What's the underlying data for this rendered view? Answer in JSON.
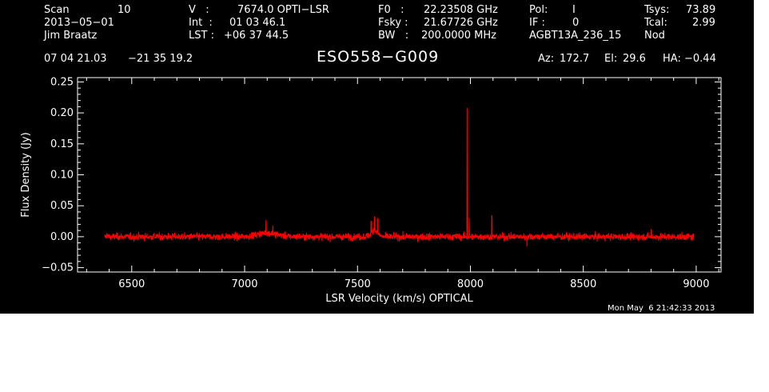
{
  "header": {
    "row1": {
      "scan_label": "Scan",
      "scan_value": "10",
      "v_label": "V   :",
      "v_value": "7674.0 OPTI−LSR",
      "f0_label": "F0   :",
      "f0_value": "22.23508 GHz",
      "pol_label": "Pol:",
      "pol_value": "I",
      "tsys_label": "Tsys:",
      "tsys_value": "73.89"
    },
    "row2": {
      "date": "2013−05−01",
      "int_label": "Int  :",
      "int_value": "01 03 46.1",
      "fsky_label": "Fsky :",
      "fsky_value": "21.67726 GHz",
      "if_label": "IF :",
      "if_value": "0",
      "tcal_label": "Tcal:",
      "tcal_value": "2.99"
    },
    "row3": {
      "observer": "Jim Braatz",
      "lst_label": "LST :",
      "lst_value": "+06 37 44.5",
      "bw_label": "BW   :",
      "bw_value": "200.0000 MHz",
      "project": "AGBT13A_236_15",
      "mode": "Nod"
    },
    "row4": {
      "ra": "07 04 21.03",
      "dec": "−21 35 19.2",
      "source": "ESO558−G009",
      "az_label": "Az:",
      "az_value": "172.7",
      "el_label": "El:",
      "el_value": "29.6",
      "ha_label": "HA:",
      "ha_value": "−0.44"
    }
  },
  "timestamp": "Mon May  6 21:42:33 2013",
  "colors": {
    "background": "#000000",
    "foreground": "#ffffff",
    "trace": "#ff0000"
  },
  "chart_data": {
    "type": "line",
    "xlabel": "LSR Velocity (km/s) OPTICAL",
    "ylabel": "Flux Density (Jy)",
    "xlim": [
      6260,
      9110
    ],
    "ylim": [
      -0.057,
      0.257
    ],
    "x_ticks": [
      6500,
      7000,
      7500,
      8000,
      8500,
      9000
    ],
    "x_tick_labels": [
      "6500",
      "7000",
      "7500",
      "8000",
      "8500",
      "9000"
    ],
    "y_ticks": [
      -0.05,
      0.0,
      0.05,
      0.1,
      0.15,
      0.2,
      0.25
    ],
    "y_tick_labels": [
      "−0.05",
      "0.00",
      "0.05",
      "0.10",
      "0.15",
      "0.20",
      "0.25"
    ],
    "grid": false,
    "series": [
      {
        "x_range": [
          6380,
          8990
        ],
        "noise_rms": 0.004,
        "features": [
          {
            "x": 6390,
            "y": 0.006
          },
          {
            "x": 7095,
            "y": 0.027
          },
          {
            "x": 7125,
            "y": 0.018
          },
          {
            "x": 7560,
            "y": 0.025
          },
          {
            "x": 7575,
            "y": 0.032
          },
          {
            "x": 7590,
            "y": 0.03
          },
          {
            "x": 7985,
            "y": 0.208
          },
          {
            "x": 7995,
            "y": 0.03
          },
          {
            "x": 8095,
            "y": 0.034
          },
          {
            "x": 8250,
            "y": -0.016
          },
          {
            "x": 8800,
            "y": 0.012
          }
        ]
      }
    ]
  }
}
